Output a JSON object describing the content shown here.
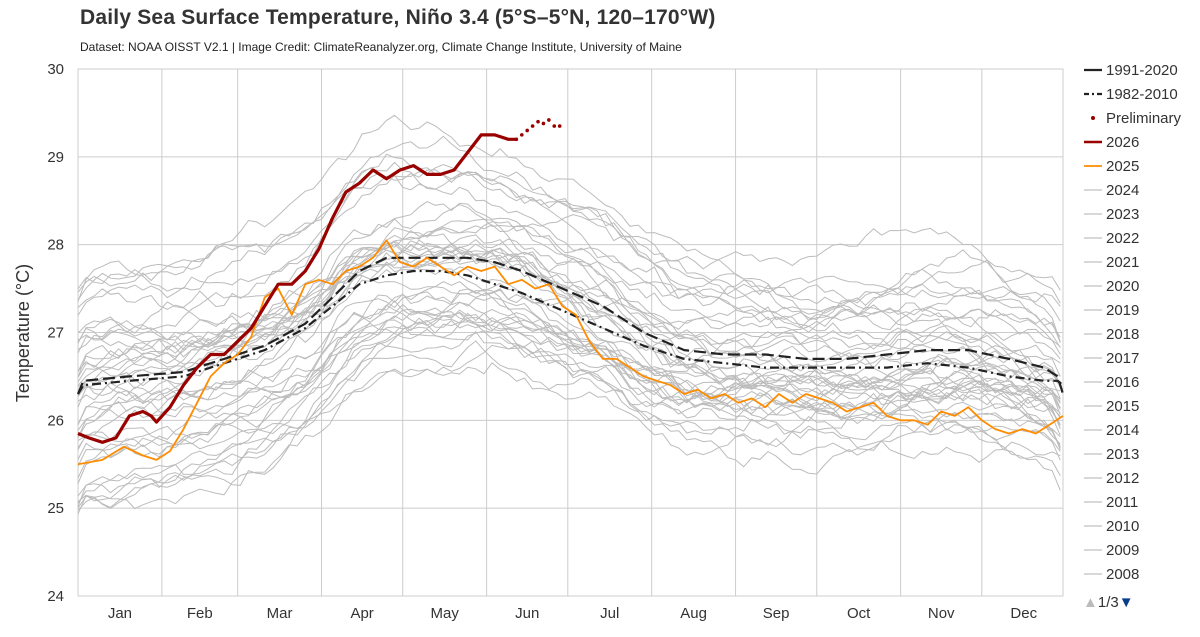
{
  "title": "Daily Sea Surface Temperature, Niño 3.4 (5°S–5°N, 120–170°W)",
  "subtitle": "Dataset: NOAA OISST V2.1 | Image Credit: ClimateReanalyzer.org, Climate Change Institute, University of Maine",
  "pager": {
    "label": "1/3",
    "up_icon": "triangle-up-icon",
    "down_icon": "triangle-down-icon"
  },
  "chart_data": {
    "type": "line",
    "title": "Daily Sea Surface Temperature, Niño 3.4 (5°S–5°N, 120–170°W)",
    "xlabel": "",
    "ylabel": "Temperature (°C)",
    "ylim": [
      24,
      30
    ],
    "yticks": [
      "24",
      "25",
      "26",
      "27",
      "28",
      "29",
      "30"
    ],
    "xlim": [
      1,
      365
    ],
    "months": [
      "Jan",
      "Feb",
      "Mar",
      "Apr",
      "May",
      "Jun",
      "Jul",
      "Aug",
      "Sep",
      "Oct",
      "Nov",
      "Dec"
    ],
    "grid": true,
    "legend_position": "right",
    "colors": {
      "y2026": "#990000",
      "y2025": "#ff8c00",
      "climatology": "#222222",
      "other_years": "#bbbbbb",
      "preliminary": "#990000"
    },
    "legend": [
      "1991-2020",
      "1982-2010",
      "Preliminary",
      "2026",
      "2025",
      "2024",
      "2023",
      "2022",
      "2021",
      "2020",
      "2019",
      "2018",
      "2017",
      "2016",
      "2015",
      "2014",
      "2013",
      "2012",
      "2011",
      "2010",
      "2009",
      "2008"
    ],
    "series": [
      {
        "name": "1991-2020",
        "style": "long-dash",
        "x": [
          1,
          3,
          20,
          40,
          55,
          70,
          85,
          95,
          105,
          115,
          125,
          135,
          145,
          155,
          165,
          180,
          195,
          210,
          225,
          240,
          255,
          270,
          285,
          300,
          315,
          330,
          345,
          358,
          363,
          365
        ],
        "y": [
          26.3,
          26.45,
          26.5,
          26.55,
          26.7,
          26.85,
          27.1,
          27.4,
          27.7,
          27.85,
          27.85,
          27.85,
          27.85,
          27.8,
          27.7,
          27.5,
          27.3,
          27.0,
          26.8,
          26.75,
          26.75,
          26.7,
          26.7,
          26.75,
          26.8,
          26.8,
          26.7,
          26.6,
          26.5,
          26.3
        ]
      },
      {
        "name": "1982-2010",
        "style": "dash-dot",
        "x": [
          1,
          3,
          20,
          40,
          55,
          70,
          85,
          95,
          105,
          115,
          125,
          135,
          145,
          155,
          165,
          180,
          195,
          210,
          225,
          240,
          255,
          270,
          285,
          300,
          315,
          330,
          345,
          358,
          363,
          365
        ],
        "y": [
          26.3,
          26.4,
          26.45,
          26.5,
          26.65,
          26.8,
          27.05,
          27.3,
          27.55,
          27.65,
          27.7,
          27.7,
          27.65,
          27.55,
          27.45,
          27.25,
          27.05,
          26.85,
          26.7,
          26.65,
          26.6,
          26.6,
          26.6,
          26.6,
          26.65,
          26.6,
          26.5,
          26.45,
          26.45,
          26.4
        ]
      },
      {
        "name": "2026",
        "x": [
          1,
          5,
          10,
          15,
          20,
          25,
          28,
          30,
          35,
          40,
          45,
          50,
          55,
          60,
          65,
          70,
          75,
          80,
          85,
          90,
          95,
          100,
          105,
          110,
          115,
          120,
          125,
          130,
          135,
          140,
          145,
          150,
          155,
          160,
          163
        ],
        "y": [
          25.85,
          25.8,
          25.75,
          25.8,
          26.05,
          26.1,
          26.05,
          25.98,
          26.15,
          26.4,
          26.6,
          26.75,
          26.75,
          26.9,
          27.05,
          27.3,
          27.55,
          27.55,
          27.7,
          27.95,
          28.3,
          28.6,
          28.7,
          28.85,
          28.75,
          28.85,
          28.9,
          28.8,
          28.8,
          28.85,
          29.05,
          29.25,
          29.25,
          29.2,
          29.2
        ]
      },
      {
        "name": "Preliminary",
        "x": [
          163,
          165,
          167,
          169,
          171,
          173,
          175,
          177,
          179
        ],
        "y": [
          29.2,
          29.25,
          29.3,
          29.35,
          29.4,
          29.38,
          29.42,
          29.35,
          29.35
        ]
      },
      {
        "name": "2025",
        "x": [
          1,
          10,
          18,
          25,
          30,
          35,
          40,
          45,
          50,
          55,
          60,
          65,
          70,
          75,
          80,
          85,
          90,
          95,
          100,
          105,
          110,
          115,
          120,
          125,
          130,
          135,
          140,
          145,
          150,
          155,
          160,
          165,
          170,
          175,
          180,
          185,
          190,
          195,
          200,
          205,
          210,
          215,
          220,
          225,
          230,
          235,
          240,
          245,
          250,
          255,
          260,
          265,
          270,
          275,
          280,
          285,
          290,
          295,
          300,
          305,
          310,
          315,
          320,
          325,
          330,
          335,
          340,
          345,
          350,
          355,
          360,
          365
        ],
        "y": [
          25.5,
          25.55,
          25.7,
          25.6,
          25.55,
          25.65,
          25.9,
          26.2,
          26.5,
          26.65,
          26.75,
          26.95,
          27.4,
          27.5,
          27.2,
          27.55,
          27.6,
          27.55,
          27.7,
          27.75,
          27.85,
          28.05,
          27.8,
          27.75,
          27.85,
          27.75,
          27.65,
          27.75,
          27.7,
          27.75,
          27.55,
          27.6,
          27.5,
          27.55,
          27.3,
          27.2,
          26.9,
          26.7,
          26.7,
          26.6,
          26.5,
          26.45,
          26.4,
          26.3,
          26.35,
          26.25,
          26.3,
          26.2,
          26.25,
          26.15,
          26.3,
          26.2,
          26.3,
          26.25,
          26.2,
          26.1,
          26.15,
          26.2,
          26.05,
          26.0,
          26.0,
          25.95,
          26.1,
          26.05,
          26.15,
          26.0,
          25.9,
          25.85,
          25.9,
          25.85,
          25.95,
          26.05
        ]
      }
    ]
  }
}
